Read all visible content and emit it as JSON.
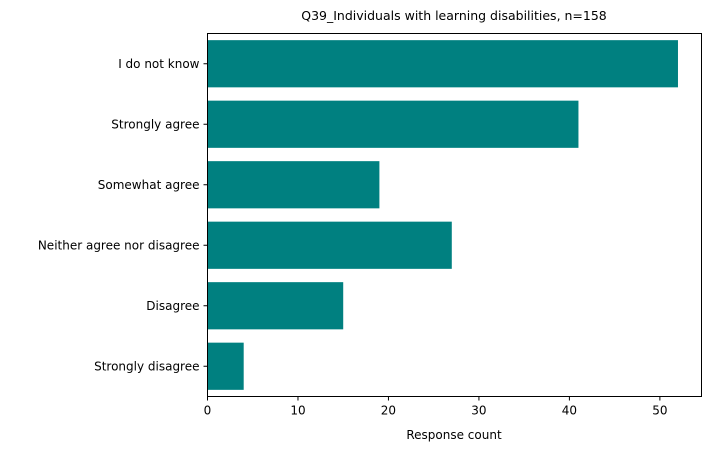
{
  "chart_data": {
    "type": "bar",
    "orientation": "horizontal",
    "title": "Q39_Individuals with learning disabilities, n=158",
    "xlabel": "Response count",
    "ylabel": "",
    "categories": [
      "I do not know",
      "Strongly agree",
      "Somewhat agree",
      "Neither agree nor disagree",
      "Disagree",
      "Strongly disagree"
    ],
    "values": [
      52,
      41,
      19,
      27,
      15,
      4
    ],
    "xlim": [
      0,
      54.6
    ],
    "xticks": [
      0,
      10,
      20,
      30,
      40,
      50
    ],
    "grid": false,
    "legend": "none",
    "bar_color": "#008080"
  }
}
